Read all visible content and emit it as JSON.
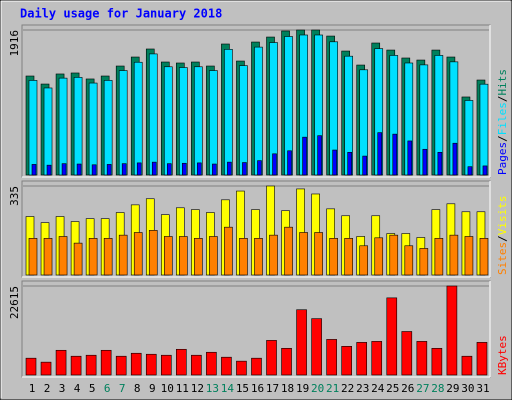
{
  "chart_data": {
    "type": "bar",
    "title": "Daily usage for January 2018",
    "categories": [
      "1",
      "2",
      "3",
      "4",
      "5",
      "6",
      "7",
      "8",
      "9",
      "10",
      "11",
      "12",
      "13",
      "14",
      "15",
      "16",
      "17",
      "18",
      "19",
      "20",
      "21",
      "22",
      "23",
      "24",
      "25",
      "26",
      "27",
      "28",
      "29",
      "30",
      "31"
    ],
    "category_colors": [
      "#000000",
      "#000000",
      "#000000",
      "#000000",
      "#000000",
      "#00805c",
      "#00805c",
      "#000000",
      "#000000",
      "#000000",
      "#000000",
      "#000000",
      "#00805c",
      "#00805c",
      "#000000",
      "#000000",
      "#000000",
      "#000000",
      "#000000",
      "#00805c",
      "#00805c",
      "#000000",
      "#000000",
      "#000000",
      "#000000",
      "#000000",
      "#00805c",
      "#00805c",
      "#000000",
      "#000000",
      "#000000"
    ],
    "legend_separator": "/",
    "panels": [
      {
        "ylim": [
          0,
          1916
        ],
        "yticks": [
          1916
        ],
        "series": [
          {
            "name": "Hits",
            "color": "#00805c",
            "values": [
              1308,
              1202,
              1335,
              1348,
              1269,
              1308,
              1440,
              1559,
              1665,
              1493,
              1480,
              1493,
              1440,
              1731,
              1506,
              1757,
              1823,
              1903,
              1916,
              1916,
              1836,
              1638,
              1453,
              1744,
              1651,
              1546,
              1519,
              1651,
              1559,
              1031,
              1255
            ]
          },
          {
            "name": "Files",
            "color": "#00e0ff",
            "values": [
              1250,
              1150,
              1280,
              1290,
              1215,
              1250,
              1380,
              1490,
              1600,
              1430,
              1420,
              1430,
              1380,
              1660,
              1445,
              1690,
              1750,
              1830,
              1850,
              1850,
              1760,
              1570,
              1390,
              1670,
              1580,
              1480,
              1455,
              1580,
              1495,
              985,
              1200
            ]
          },
          {
            "name": "Pages",
            "color": "#0000ff",
            "values": [
              140,
              130,
              150,
              145,
              135,
              140,
              150,
              160,
              170,
              150,
              155,
              160,
              145,
              170,
              165,
              190,
              280,
              320,
              500,
              520,
              330,
              300,
              250,
              560,
              540,
              450,
              340,
              300,
              420,
              110,
              120
            ]
          }
        ]
      },
      {
        "ylim": [
          0,
          335
        ],
        "yticks": [
          335
        ],
        "series": [
          {
            "name": "Visits",
            "color": "#ffff00",
            "values": [
              220,
              197,
              220,
              201,
              212,
              212,
              235,
              264,
              287,
              227,
              253,
              246,
              235,
              283,
              316,
              246,
              335,
              242,
              324,
              305,
              249,
              223,
              145,
              223,
              156,
              156,
              141,
              246,
              268,
              238,
              238
            ]
          },
          {
            "name": "Sites",
            "color": "#ff8000",
            "values": [
              138,
              138,
              145,
              120,
              138,
              138,
              150,
              160,
              168,
              145,
              145,
              138,
              145,
              180,
              138,
              138,
              150,
              180,
              160,
              160,
              138,
              138,
              110,
              140,
              150,
              110,
              100,
              138,
              150,
              145,
              138
            ]
          }
        ]
      },
      {
        "ylim": [
          0,
          22615
        ],
        "yticks": [
          22615
        ],
        "series": [
          {
            "name": "KBytes",
            "color": "#ff0000",
            "values": [
              4272,
              3267,
              6282,
              4774,
              5025,
              6282,
              4774,
              5528,
              5276,
              5025,
              6533,
              5025,
              5779,
              4523,
              3518,
              4272,
              8794,
              6785,
              16584,
              14323,
              9045,
              7287,
              8292,
              8543,
              19600,
              11056,
              8543,
              6785,
              22615,
              4774,
              8292
            ]
          }
        ]
      }
    ]
  }
}
